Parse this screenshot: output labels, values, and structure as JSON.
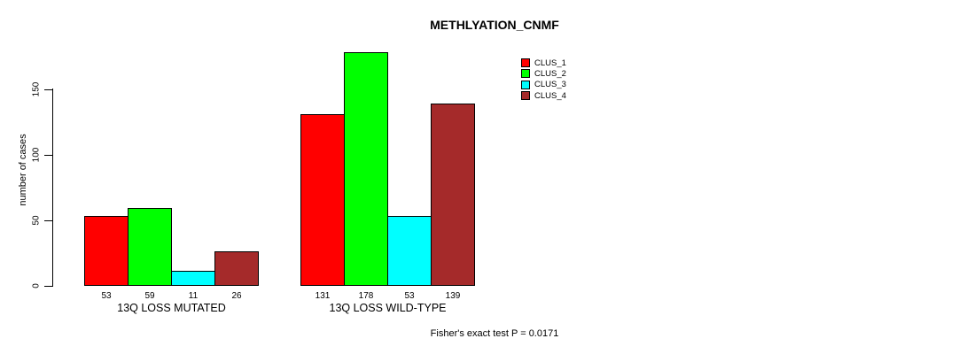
{
  "chart_data": {
    "type": "bar",
    "title": "METHLYATION_CNMF",
    "ylabel": "number of cases",
    "xlabel": "",
    "ylim": [
      0,
      150
    ],
    "yticks": [
      0,
      50,
      100,
      150
    ],
    "grid": false,
    "legend_position": "top-right",
    "bar_border_color": "#000000",
    "groups": [
      "13Q LOSS MUTATED",
      "13Q LOSS WILD-TYPE"
    ],
    "series": [
      {
        "name": "CLUS_1",
        "color": "#ff0000",
        "values": [
          53,
          131
        ]
      },
      {
        "name": "CLUS_2",
        "color": "#00ff00",
        "values": [
          59,
          178
        ]
      },
      {
        "name": "CLUS_3",
        "color": "#00ffff",
        "values": [
          11,
          53
        ]
      },
      {
        "name": "CLUS_4",
        "color": "#a52a2a",
        "values": [
          26,
          139
        ]
      }
    ],
    "bar_labels": [
      [
        53,
        59,
        11,
        26
      ],
      [
        131,
        178,
        53,
        139
      ]
    ],
    "footnote": "Fisher's exact test P = 0.0171"
  }
}
